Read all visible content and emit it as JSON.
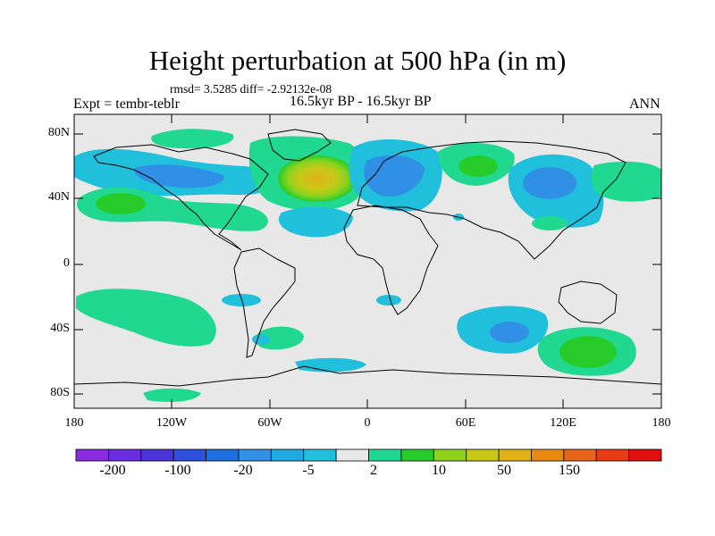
{
  "header": {
    "title": "Height perturbation at 500 hPa (in m)",
    "stats": "rmsd= 3.5285 diff= -2.92132e-08",
    "expt": "Expt = tembr-teblr",
    "period": "16.5kyr BP - 16.5kyr BP",
    "season": "ANN"
  },
  "axes": {
    "y_labels": [
      "80N",
      "40N",
      "0",
      "40S",
      "80S"
    ],
    "x_labels": [
      "180",
      "120W",
      "60W",
      "0",
      "60E",
      "120E",
      "180"
    ]
  },
  "colorbar": {
    "labels": [
      "-200",
      "-100",
      "-20",
      "-5",
      "2",
      "10",
      "50",
      "150"
    ],
    "colors": [
      "#8a2be2",
      "#6a2cdf",
      "#4b33d6",
      "#2f50dc",
      "#1e6fe0",
      "#2f90e6",
      "#20a8e0",
      "#20c0dd",
      "#e8e8e8",
      "#20d890",
      "#28cc2a",
      "#8ed21e",
      "#c8c818",
      "#e0b218",
      "#e88a12",
      "#e8641a",
      "#e83c14",
      "#e01010"
    ]
  },
  "map": {
    "background_color": "#e8e8e8",
    "features": [
      {
        "name": "anomaly-positive-north-atlantic",
        "level": "10 to 50"
      },
      {
        "name": "anomaly-negative-europe",
        "level": "-20 to -5"
      },
      {
        "name": "anomaly-positive-southern-ocean",
        "level": "10 to 50"
      }
    ]
  }
}
